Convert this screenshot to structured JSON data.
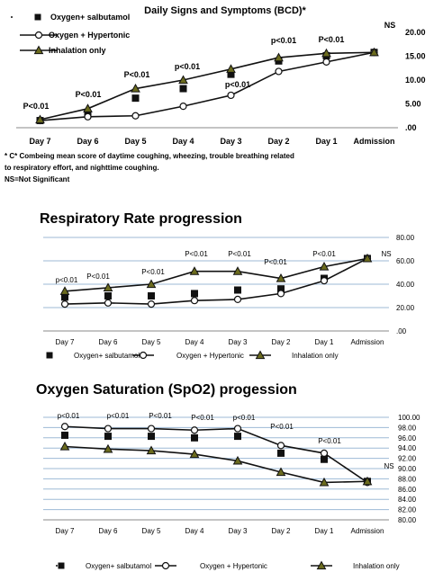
{
  "chart_data": [
    {
      "type": "line",
      "title": "Daily Signs and Symptoms (BCD)*",
      "categories": [
        "Day 7",
        "Day 6",
        "Day 5",
        "Day 4",
        "Day 3",
        "Day 2",
        "Day 1",
        "Admission"
      ],
      "ylim": [
        0,
        20
      ],
      "yticks": [
        ".00",
        "5.00",
        "10.00",
        "15.00",
        "20.00"
      ],
      "legend_position": "top-left",
      "series": [
        {
          "name": "Oxygen+ salbutamol",
          "marker": "square",
          "line": false,
          "values": [
            1.5,
            2.8,
            6.2,
            8.2,
            11.2,
            14.0,
            15.1,
            15.8
          ]
        },
        {
          "name": "Oxygen + Hypertonic",
          "marker": "circle",
          "line": true,
          "values": [
            1.5,
            2.3,
            2.5,
            4.5,
            6.8,
            11.8,
            13.8,
            15.8
          ]
        },
        {
          "name": "Inhalation only",
          "marker": "triangle",
          "line": true,
          "values": [
            1.7,
            4.0,
            8.2,
            10.0,
            12.3,
            14.7,
            15.6,
            15.8
          ]
        }
      ],
      "annotations": [
        "P<0.01",
        "P<0.01",
        "P<0.01",
        "p<0.01",
        "p<0.01",
        "p<0.01",
        "P<0.01",
        "NS"
      ],
      "footnote": [
        "* C* Combeing  mean score of daytime coughing, wheezing, trouble breathing related",
        "to respiratory effort, and nighttime coughing.",
        "NS=Not Significant"
      ]
    },
    {
      "type": "line",
      "title": "Respiratory Rate progression",
      "categories": [
        "Day 7",
        "Day 6",
        "Day 5",
        "Day 4",
        "Day 3",
        "Day 2",
        "Day 1",
        "Admission"
      ],
      "ylim": [
        0,
        80
      ],
      "yticks": [
        ".00",
        "20.00",
        "40.00",
        "60.00",
        "80.00"
      ],
      "grid": true,
      "legend_position": "bottom",
      "series": [
        {
          "name": "Oxygen+ salbutamol",
          "marker": "square",
          "line": false,
          "values": [
            29,
            30,
            30,
            32,
            35,
            36,
            45,
            62
          ]
        },
        {
          "name": "Oxygen + Hypertonic",
          "marker": "circle",
          "line": true,
          "values": [
            23,
            24,
            23,
            26,
            27,
            32,
            43,
            62
          ]
        },
        {
          "name": "Inhalation only",
          "marker": "triangle",
          "line": true,
          "values": [
            34,
            37,
            40,
            51,
            51,
            45,
            55,
            62
          ]
        }
      ],
      "annotations": [
        "p<0.01",
        "P<0.01",
        "P<0.01",
        "P<0.01",
        "P<0.01",
        "P<0.01",
        "P<0.01",
        "NS"
      ]
    },
    {
      "type": "line",
      "title": "Oxygen Saturation (SpO2) progession",
      "categories": [
        "Day 7",
        "Day 6",
        "Day 5",
        "Day 4",
        "Day 3",
        "Day 2",
        "Day 1",
        "Admission"
      ],
      "ylim": [
        80,
        100
      ],
      "yticks": [
        "80.00",
        "82.00",
        "84.00",
        "86.00",
        "88.00",
        "90.00",
        "92.00",
        "94.00",
        "96.00",
        "98.00",
        "100.00"
      ],
      "grid": true,
      "legend_position": "bottom",
      "series": [
        {
          "name": "Oxygen+ salbutamol",
          "marker": "square",
          "line": false,
          "values": [
            96.5,
            96.3,
            96.3,
            96.0,
            96.3,
            93.0,
            91.8,
            87.5
          ]
        },
        {
          "name": "Oxygen + Hypertonic",
          "marker": "circle",
          "line": true,
          "values": [
            98.2,
            97.8,
            97.8,
            97.5,
            97.8,
            94.5,
            93.0,
            87.3
          ]
        },
        {
          "name": "Inhalation only",
          "marker": "triangle",
          "line": true,
          "values": [
            94.3,
            93.8,
            93.5,
            92.8,
            91.5,
            89.3,
            87.3,
            87.5
          ]
        }
      ],
      "annotations": [
        "p<0.01",
        "p<0.01",
        "P<0.01",
        "P<0.01",
        "p<0.01",
        "P<0.01",
        "P<0.01",
        "NS"
      ]
    }
  ]
}
